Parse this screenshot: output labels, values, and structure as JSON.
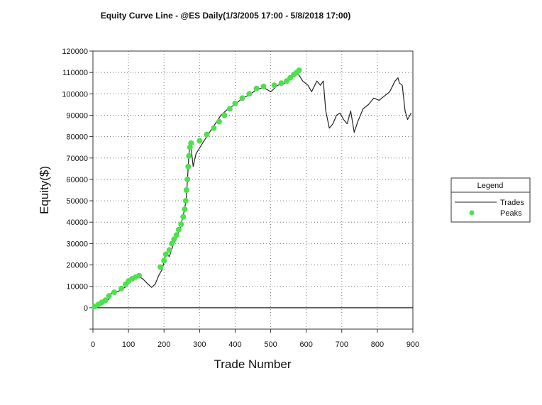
{
  "chart_data": {
    "type": "line",
    "title": "Equity Curve Line - @ES Daily(1/3/2005 17:00 - 5/8/2018 17:00)",
    "xlabel": "Trade Number",
    "ylabel": "Equity($)",
    "xlim": [
      0,
      900
    ],
    "ylim": [
      -10000,
      120000
    ],
    "x_ticks": [
      "0",
      "100",
      "200",
      "300",
      "400",
      "500",
      "600",
      "700",
      "800",
      "900"
    ],
    "y_ticks": [
      "0",
      "10000",
      "20000",
      "30000",
      "40000",
      "50000",
      "60000",
      "70000",
      "80000",
      "90000",
      "100000",
      "110000",
      "120000"
    ],
    "grid": true,
    "legend": {
      "title": "Legend",
      "position": "right",
      "entries": [
        "Trades",
        "Peaks"
      ]
    },
    "series": [
      {
        "name": "Trades",
        "style": "line",
        "color": "#222222",
        "points": [
          [
            0,
            0
          ],
          [
            15,
            500
          ],
          [
            30,
            2000
          ],
          [
            45,
            4000
          ],
          [
            55,
            8000
          ],
          [
            70,
            7500
          ],
          [
            90,
            9500
          ],
          [
            110,
            13000
          ],
          [
            125,
            15000
          ],
          [
            140,
            13500
          ],
          [
            155,
            11000
          ],
          [
            165,
            9500
          ],
          [
            175,
            11000
          ],
          [
            185,
            15000
          ],
          [
            195,
            18000
          ],
          [
            205,
            25000
          ],
          [
            215,
            24000
          ],
          [
            225,
            29000
          ],
          [
            235,
            33000
          ],
          [
            245,
            37000
          ],
          [
            255,
            44000
          ],
          [
            262,
            50000
          ],
          [
            266,
            60000
          ],
          [
            270,
            72000
          ],
          [
            275,
            76500
          ],
          [
            282,
            66000
          ],
          [
            290,
            72000
          ],
          [
            305,
            76000
          ],
          [
            320,
            80000
          ],
          [
            340,
            85000
          ],
          [
            360,
            90000
          ],
          [
            380,
            93000
          ],
          [
            400,
            95000
          ],
          [
            420,
            98000
          ],
          [
            440,
            99500
          ],
          [
            460,
            102000
          ],
          [
            480,
            103000
          ],
          [
            500,
            101000
          ],
          [
            520,
            104000
          ],
          [
            540,
            105000
          ],
          [
            560,
            108000
          ],
          [
            575,
            110000
          ],
          [
            590,
            106000
          ],
          [
            605,
            104000
          ],
          [
            615,
            101000
          ],
          [
            630,
            106000
          ],
          [
            640,
            104000
          ],
          [
            648,
            106000
          ],
          [
            655,
            92000
          ],
          [
            665,
            84000
          ],
          [
            675,
            86000
          ],
          [
            685,
            90000
          ],
          [
            695,
            91000
          ],
          [
            705,
            88000
          ],
          [
            715,
            86000
          ],
          [
            725,
            92000
          ],
          [
            735,
            82000
          ],
          [
            745,
            87000
          ],
          [
            760,
            93000
          ],
          [
            775,
            95000
          ],
          [
            790,
            98000
          ],
          [
            805,
            97000
          ],
          [
            820,
            99000
          ],
          [
            835,
            101000
          ],
          [
            850,
            106000
          ],
          [
            858,
            107500
          ],
          [
            862,
            105000
          ],
          [
            870,
            104000
          ],
          [
            878,
            92000
          ],
          [
            885,
            88000
          ],
          [
            895,
            91000
          ]
        ]
      },
      {
        "name": "Peaks",
        "style": "scatter",
        "color": "#4ee04e",
        "points": [
          [
            5,
            500
          ],
          [
            15,
            1500
          ],
          [
            25,
            2500
          ],
          [
            35,
            3500
          ],
          [
            45,
            5500
          ],
          [
            60,
            7200
          ],
          [
            80,
            9000
          ],
          [
            92,
            11000
          ],
          [
            100,
            12500
          ],
          [
            110,
            13500
          ],
          [
            120,
            14300
          ],
          [
            130,
            15000
          ],
          [
            190,
            19000
          ],
          [
            200,
            22000
          ],
          [
            205,
            25000
          ],
          [
            215,
            27000
          ],
          [
            222,
            30000
          ],
          [
            228,
            32000
          ],
          [
            235,
            34000
          ],
          [
            241,
            36500
          ],
          [
            248,
            39000
          ],
          [
            254,
            42500
          ],
          [
            258,
            46000
          ],
          [
            261,
            50000
          ],
          [
            263,
            55000
          ],
          [
            266,
            60000
          ],
          [
            268,
            66000
          ],
          [
            270,
            71000
          ],
          [
            273,
            75000
          ],
          [
            276,
            77000
          ],
          [
            300,
            78000
          ],
          [
            320,
            81000
          ],
          [
            340,
            84000
          ],
          [
            355,
            87000
          ],
          [
            370,
            90000
          ],
          [
            385,
            93000
          ],
          [
            400,
            95500
          ],
          [
            420,
            98000
          ],
          [
            440,
            100000
          ],
          [
            460,
            102500
          ],
          [
            480,
            103500
          ],
          [
            510,
            104000
          ],
          [
            530,
            105000
          ],
          [
            545,
            106000
          ],
          [
            555,
            107500
          ],
          [
            565,
            109000
          ],
          [
            573,
            110000
          ],
          [
            580,
            111000
          ]
        ]
      }
    ]
  }
}
